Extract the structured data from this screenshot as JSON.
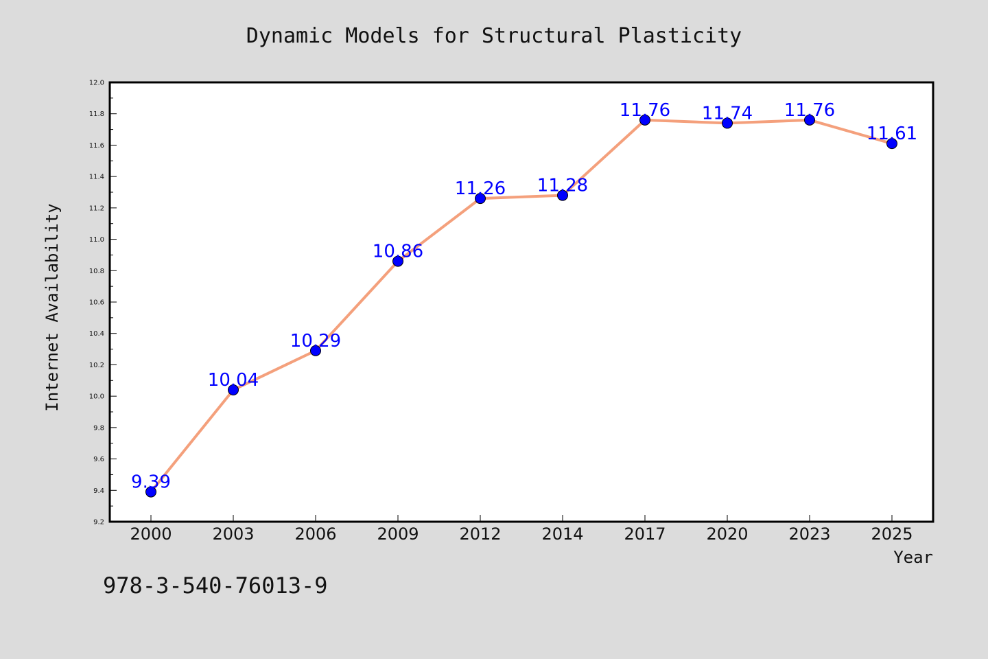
{
  "chart_data": {
    "type": "line",
    "title": "Dynamic Models for Structural Plasticity",
    "xlabel": "Year",
    "ylabel": "Internet Availability",
    "categories": [
      "2000",
      "2003",
      "2006",
      "2009",
      "2012",
      "2014",
      "2017",
      "2020",
      "2023",
      "2025"
    ],
    "values": [
      9.39,
      10.04,
      10.29,
      10.86,
      11.26,
      11.28,
      11.76,
      11.74,
      11.76,
      11.61
    ],
    "data_labels": [
      "9.39",
      "10.04",
      "10.29",
      "10.86",
      "11.26",
      "11.28",
      "11.76",
      "11.74",
      "11.76",
      "11.61"
    ],
    "ylim": [
      9.2,
      12.0
    ],
    "yticks": [
      "9.2",
      "9.4",
      "9.6",
      "9.8",
      "10.0",
      "10.2",
      "10.4",
      "10.6",
      "10.8",
      "11.0",
      "11.2",
      "11.4",
      "11.6",
      "11.8",
      "12.0"
    ],
    "grid": false,
    "line_color": "#f4a07c",
    "marker_color": "#0000ff",
    "label_color": "#0000ff",
    "background": "#dcdcdc",
    "plot_background": "#ffffff"
  },
  "footer": {
    "text": "978-3-540-76013-9"
  }
}
